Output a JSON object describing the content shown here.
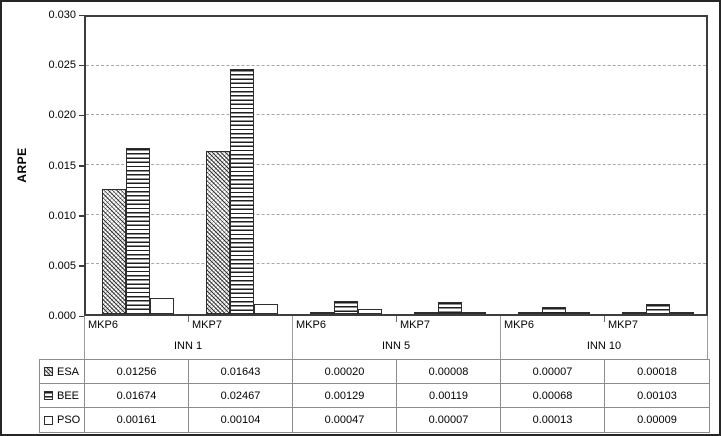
{
  "figure": {
    "background": "#ffffff",
    "border_color": "#262626"
  },
  "chart_data": {
    "type": "bar",
    "title": "",
    "xlabel": "",
    "ylabel": "ARPE",
    "ylim": [
      0,
      0.03
    ],
    "ytick_step": 0.005,
    "ytick_labels": [
      "0.000",
      "0.005",
      "0.010",
      "0.015",
      "0.020",
      "0.025",
      "0.030"
    ],
    "grid": "horizontal-dashed",
    "legend_position": "left-of-data-table",
    "groups": [
      {
        "label": "INN 1",
        "categories": [
          "MKP6",
          "MKP7"
        ]
      },
      {
        "label": "INN 5",
        "categories": [
          "MKP6",
          "MKP7"
        ]
      },
      {
        "label": "INN 10",
        "categories": [
          "MKP6",
          "MKP7"
        ]
      }
    ],
    "series": [
      {
        "name": "ESA",
        "pattern": "diagonal-hatch",
        "values": [
          0.01256,
          0.01643,
          0.0002,
          8e-05,
          7e-05,
          0.00018
        ],
        "labels": [
          "0.01256",
          "0.01643",
          "0.00020",
          "0.00008",
          "0.00007",
          "0.00018"
        ]
      },
      {
        "name": "BEE",
        "pattern": "horizontal-lines",
        "values": [
          0.01674,
          0.02467,
          0.00129,
          0.00119,
          0.00068,
          0.00103
        ],
        "labels": [
          "0.01674",
          "0.02467",
          "0.00129",
          "0.00119",
          "0.00068",
          "0.00103"
        ]
      },
      {
        "name": "PSO",
        "pattern": "solid-white",
        "values": [
          0.00161,
          0.00104,
          0.00047,
          7e-05,
          0.00013,
          9e-05
        ],
        "labels": [
          "0.00161",
          "0.00104",
          "0.00047",
          "0.00007",
          "0.00013",
          "0.00009"
        ]
      }
    ],
    "colors": {
      "bar_fill": "#ffffff",
      "bar_border": "#2e2e2e",
      "axis": "#3d3d3d",
      "gridline": "#a8a8a8",
      "table_border": "#8c8c8c",
      "text": "#000000"
    }
  }
}
